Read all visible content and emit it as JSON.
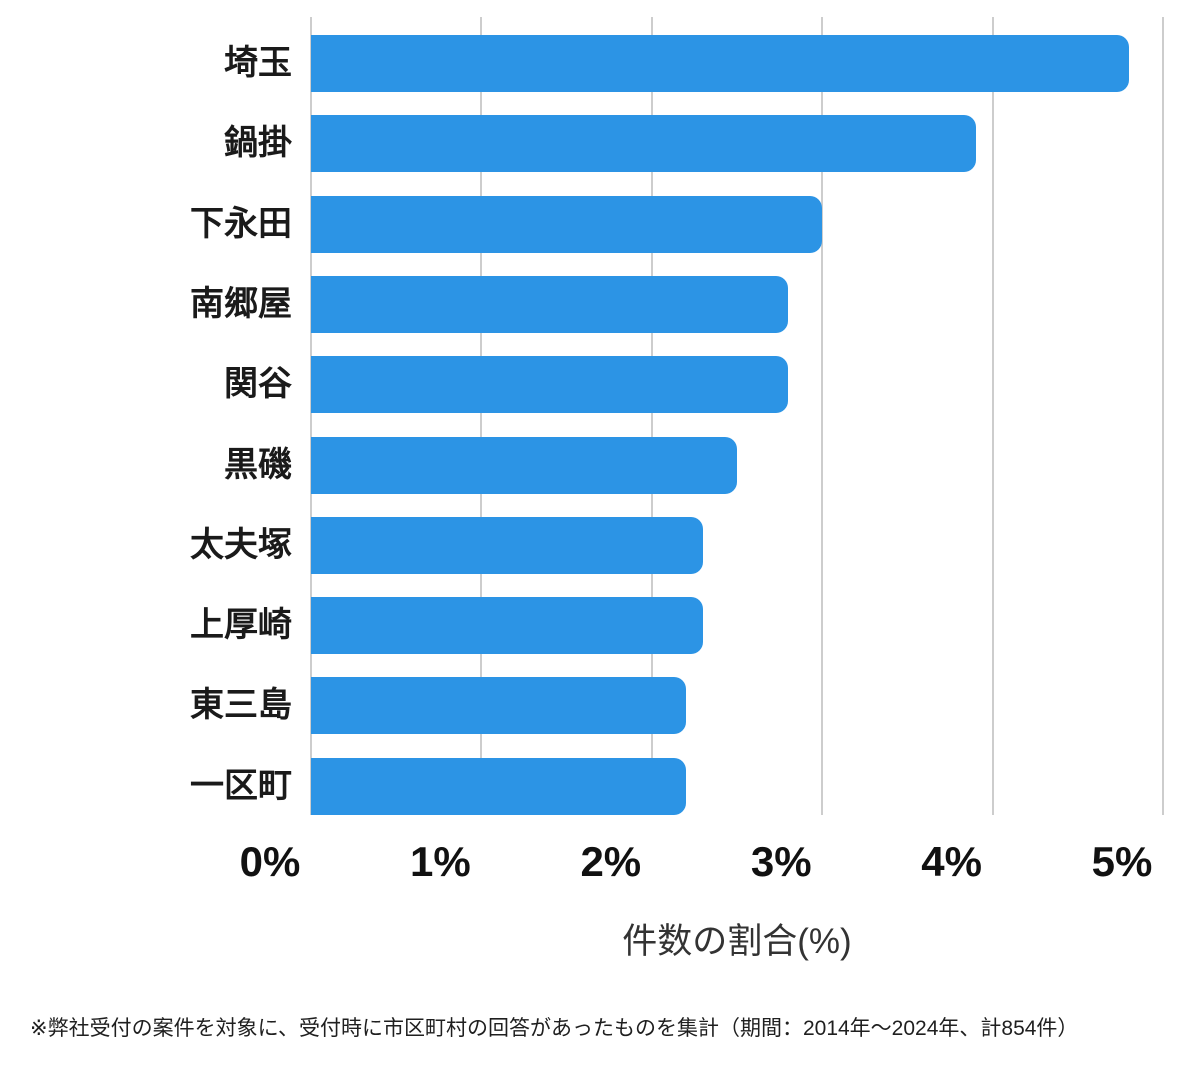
{
  "chart_data": {
    "type": "bar",
    "orientation": "horizontal",
    "categories": [
      "埼玉",
      "鍋掛",
      "下永田",
      "南郷屋",
      "関谷",
      "黒磯",
      "太夫塚",
      "上厚崎",
      "東三島",
      "一区町"
    ],
    "values": [
      4.8,
      3.9,
      3.0,
      2.8,
      2.8,
      2.5,
      2.3,
      2.3,
      2.2,
      2.2
    ],
    "title": "",
    "xlabel": "件数の割合(%)",
    "ylabel": "",
    "xlim": [
      0,
      5
    ],
    "x_ticks": [
      "0%",
      "1%",
      "2%",
      "3%",
      "4%",
      "5%"
    ],
    "grid": "vertical-gridlines-on",
    "legend_position": "none",
    "bar_color": "#2C94E5",
    "gridline_color": "#CDCDCD"
  },
  "footnote": "※弊社受付の案件を対象に、受付時に市区町村の回答があったものを集計（期間：2014年～2024年、計854件）"
}
